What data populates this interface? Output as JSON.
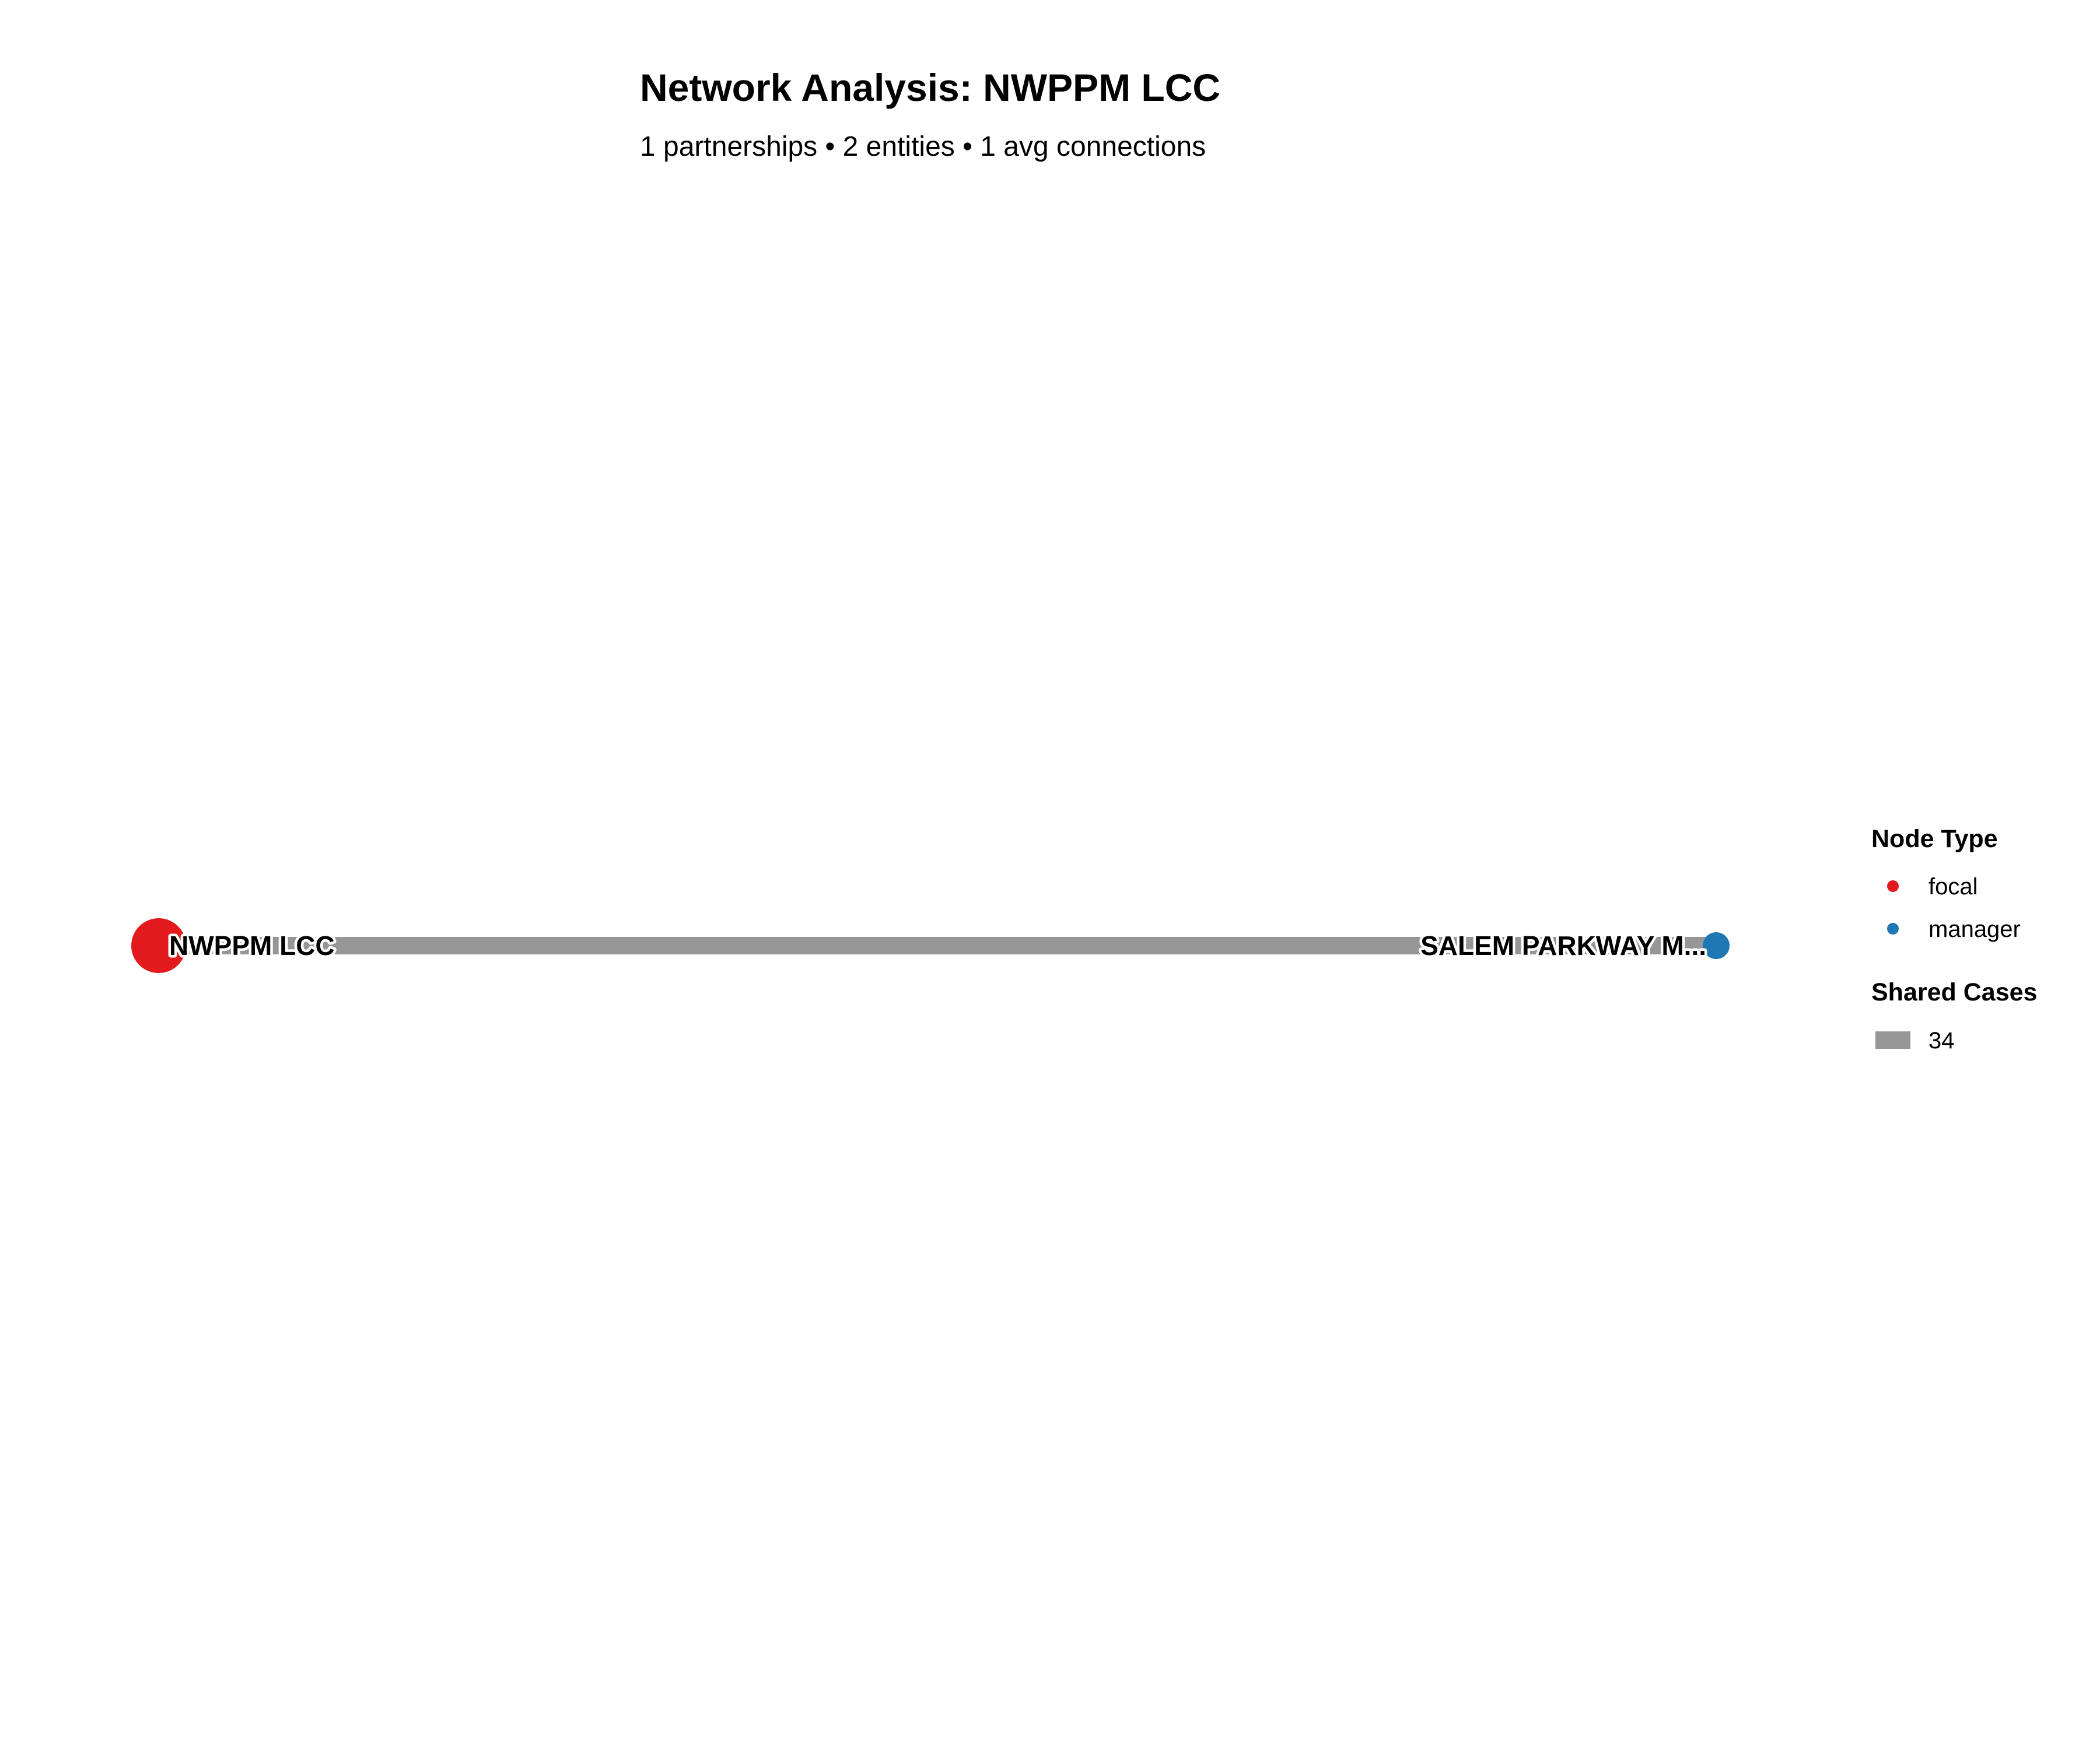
{
  "header": {
    "title": "Network Analysis: NWPPM LCC",
    "subtitle": "1 partnerships • 2 entities • 1 avg connections"
  },
  "network": {
    "nodes": [
      {
        "id": "focal-node",
        "label": "NWPPM LCC",
        "type": "focal"
      },
      {
        "id": "manager-node",
        "label": "SALEM PARKWAY M...",
        "type": "manager"
      }
    ],
    "edges": [
      {
        "source": "focal-node",
        "target": "manager-node",
        "shared_cases": 34
      }
    ]
  },
  "legend": {
    "node_type_title": "Node Type",
    "node_types": [
      {
        "label": "focal",
        "color": "#e31a1c"
      },
      {
        "label": "manager",
        "color": "#1f78b4"
      }
    ],
    "shared_cases_title": "Shared Cases",
    "shared_cases_items": [
      {
        "label": "34",
        "color": "#969696"
      }
    ]
  },
  "colors": {
    "focal": "#e31a1c",
    "manager": "#1f78b4",
    "edge": "#969696"
  }
}
